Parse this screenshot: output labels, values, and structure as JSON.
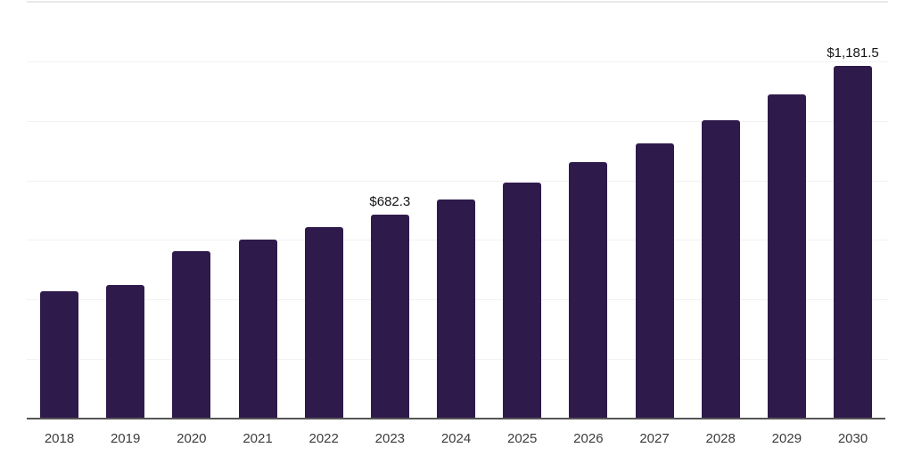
{
  "chart_data": {
    "type": "bar",
    "title": "",
    "xlabel": "",
    "ylabel": "",
    "categories": [
      "2018",
      "2019",
      "2020",
      "2021",
      "2022",
      "2023",
      "2024",
      "2025",
      "2026",
      "2027",
      "2028",
      "2029",
      "2030"
    ],
    "values": [
      425,
      446,
      558,
      597,
      640,
      682.3,
      733,
      790,
      858,
      921,
      999,
      1086,
      1181.5
    ],
    "data_labels": {
      "2023": "$682.3",
      "2030": "$1,181.5"
    },
    "ylim": [
      0,
      1400
    ],
    "gridline_step": 200,
    "grid": "horizontal",
    "y_tick_labels_visible": false,
    "legend_position": "none",
    "colors": {
      "bar": "#2f1a4c",
      "gridline": "#f2f2f5",
      "top_gridline": "#e9e9ec",
      "axis_line": "#565656",
      "tick_label": "#3c3c3c",
      "value_label": "#141414",
      "background": "#ffffff"
    }
  }
}
